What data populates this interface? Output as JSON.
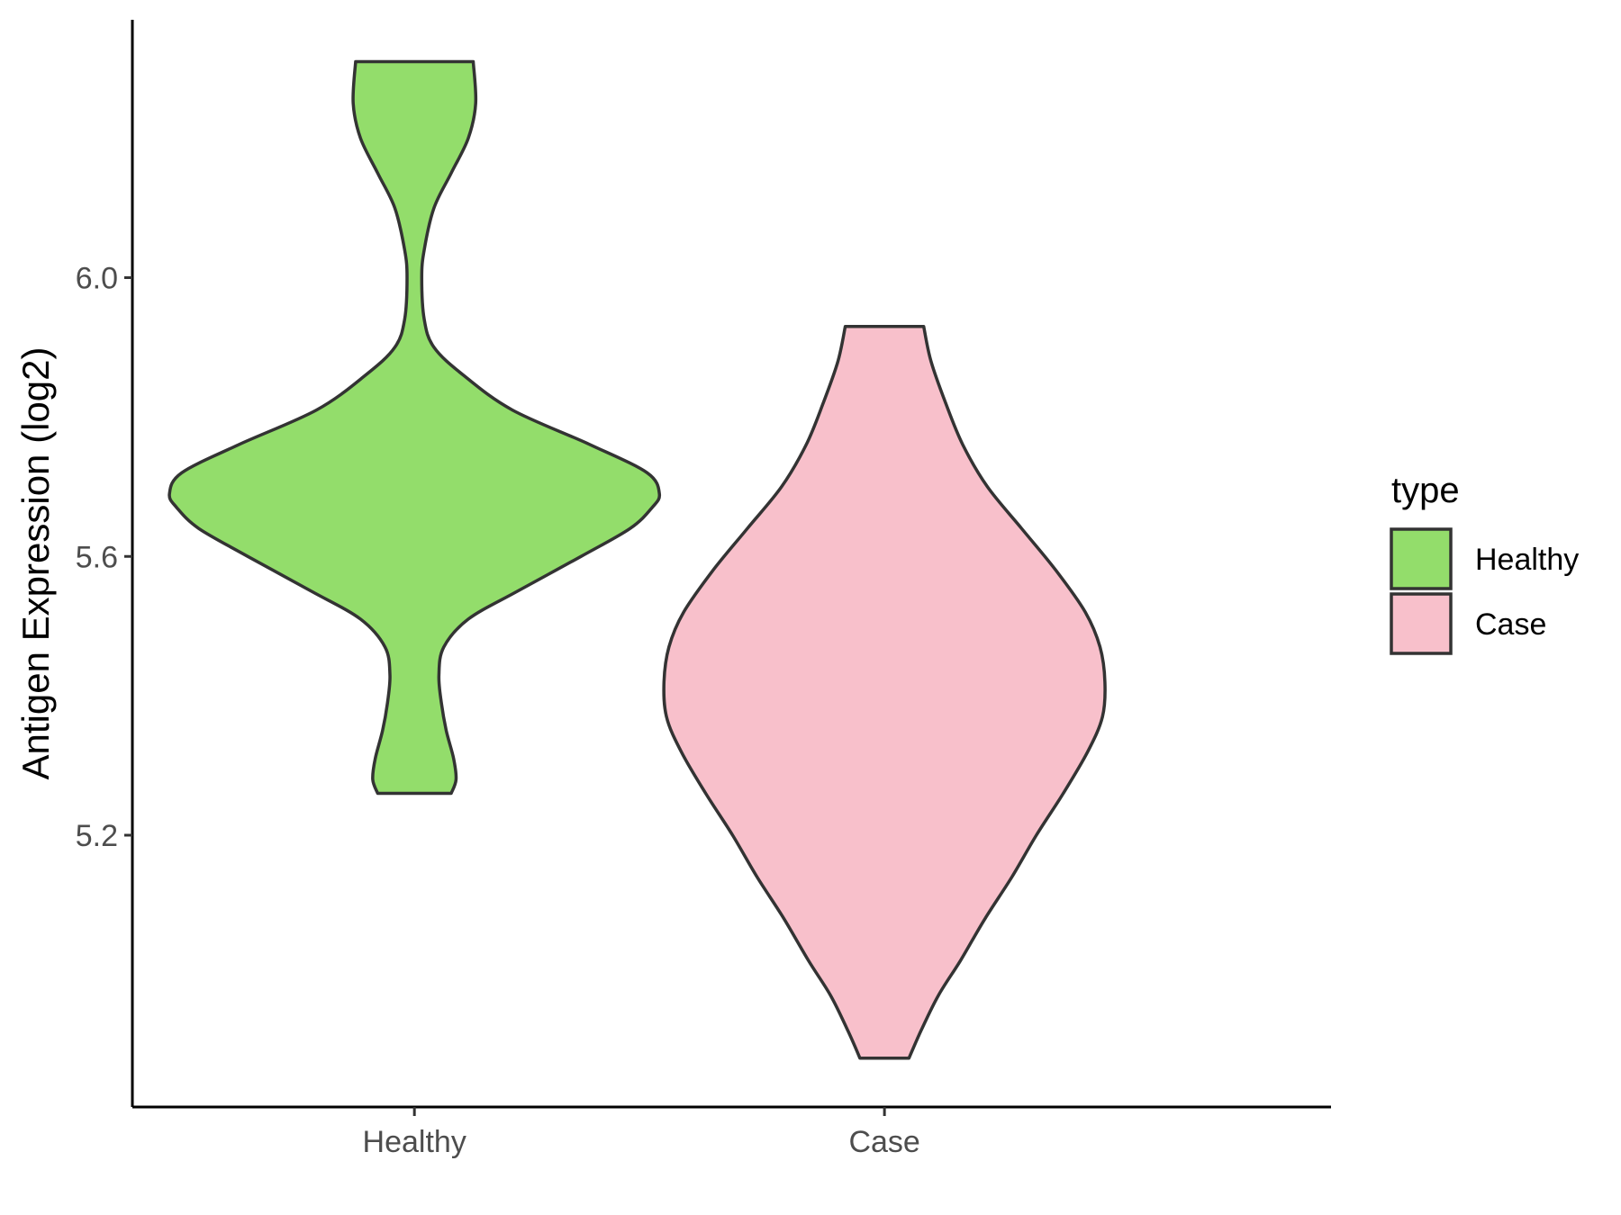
{
  "chart_data": {
    "type": "violin",
    "title": "",
    "xlabel": "",
    "ylabel": "Antigen Expression (log2)",
    "categories": [
      "Healthy",
      "Case"
    ],
    "ylim": [
      4.81,
      6.37
    ],
    "y_ticks": [
      5.2,
      5.6,
      6.0
    ],
    "y_tick_labels": [
      "5.2",
      "5.6",
      "6.0"
    ],
    "grid": false,
    "legend": {
      "title": "type",
      "position": "right",
      "entries": [
        "Healthy",
        "Case"
      ]
    },
    "series": [
      {
        "name": "Healthy",
        "color": "#93dd6b",
        "y_min": 5.26,
        "y_max": 6.31,
        "density_profile": [
          [
            5.26,
            0.15
          ],
          [
            5.28,
            0.17
          ],
          [
            5.31,
            0.16
          ],
          [
            5.35,
            0.13
          ],
          [
            5.39,
            0.11
          ],
          [
            5.43,
            0.1
          ],
          [
            5.47,
            0.12
          ],
          [
            5.51,
            0.22
          ],
          [
            5.55,
            0.42
          ],
          [
            5.6,
            0.68
          ],
          [
            5.64,
            0.88
          ],
          [
            5.67,
            0.97
          ],
          [
            5.69,
            1.0
          ],
          [
            5.72,
            0.95
          ],
          [
            5.76,
            0.72
          ],
          [
            5.81,
            0.4
          ],
          [
            5.86,
            0.2
          ],
          [
            5.9,
            0.08
          ],
          [
            5.94,
            0.04
          ],
          [
            6.0,
            0.03
          ],
          [
            6.04,
            0.04
          ],
          [
            6.1,
            0.08
          ],
          [
            6.15,
            0.15
          ],
          [
            6.2,
            0.22
          ],
          [
            6.25,
            0.25
          ],
          [
            6.31,
            0.24
          ]
        ]
      },
      {
        "name": "Case",
        "color": "#f8c0cb",
        "y_min": 4.88,
        "y_max": 5.93,
        "density_profile": [
          [
            4.88,
            0.1
          ],
          [
            4.92,
            0.15
          ],
          [
            4.97,
            0.22
          ],
          [
            5.02,
            0.31
          ],
          [
            5.08,
            0.41
          ],
          [
            5.14,
            0.52
          ],
          [
            5.2,
            0.62
          ],
          [
            5.26,
            0.73
          ],
          [
            5.32,
            0.83
          ],
          [
            5.37,
            0.89
          ],
          [
            5.42,
            0.9
          ],
          [
            5.47,
            0.88
          ],
          [
            5.52,
            0.82
          ],
          [
            5.58,
            0.7
          ],
          [
            5.64,
            0.56
          ],
          [
            5.7,
            0.42
          ],
          [
            5.76,
            0.32
          ],
          [
            5.82,
            0.25
          ],
          [
            5.88,
            0.19
          ],
          [
            5.93,
            0.16
          ]
        ]
      }
    ]
  }
}
